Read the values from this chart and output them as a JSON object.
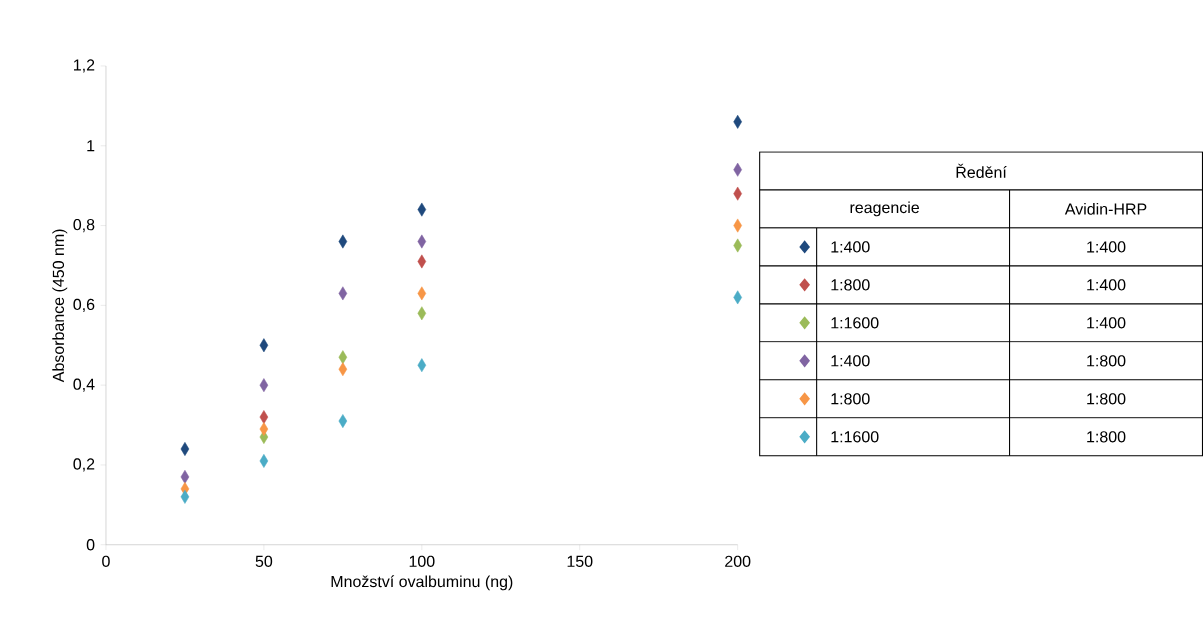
{
  "chart_data": {
    "type": "scatter",
    "xlabel": "Množství ovalbuminu  (ng)",
    "ylabel": "Absorbance (450 nm)",
    "legend_title": "Ředění",
    "annotations": [
      "reagencie",
      "Avidin-HRP",
      "1:400",
      "1:400",
      "1:400",
      "1:800",
      "1:800",
      "1:800"
    ],
    "x": [
      25,
      50,
      75,
      100,
      200
    ],
    "series": [
      {
        "name": "1:400",
        "color": "#1f497d",
        "values": [
          0.24,
          0.5,
          0.76,
          0.84,
          1.06
        ]
      },
      {
        "name": "1:800",
        "color": "#c0504d",
        "values": [
          null,
          0.32,
          null,
          0.71,
          0.88
        ]
      },
      {
        "name": "1:1600",
        "color": "#9bbb59",
        "values": [
          null,
          0.27,
          0.47,
          0.58,
          0.75
        ]
      },
      {
        "name": "1:400",
        "color": "#8064a2",
        "values": [
          0.17,
          0.4,
          0.63,
          0.76,
          0.94
        ]
      },
      {
        "name": "1:800",
        "color": "#f79646",
        "values": [
          0.14,
          0.29,
          0.44,
          0.63,
          0.8
        ]
      },
      {
        "name": "1:1600",
        "color": "#4bacc6",
        "values": [
          0.12,
          0.21,
          0.31,
          0.45,
          0.62
        ]
      }
    ],
    "xlim": [
      0,
      200
    ],
    "xticks": [
      0,
      50,
      100,
      150,
      200
    ],
    "ylim": [
      0,
      1.2
    ],
    "yticks": [
      0,
      {
        "value": 0.2,
        "label": "0,2"
      },
      {
        "value": 0.4,
        "label": "0,4"
      },
      {
        "value": 0.6,
        "label": "0,6"
      },
      {
        "value": 0.8,
        "label": "0,8"
      },
      1,
      {
        "value": 1.2,
        "label": "1,2"
      }
    ],
    "grid": false,
    "legend": "right",
    "marker": "diamond"
  }
}
